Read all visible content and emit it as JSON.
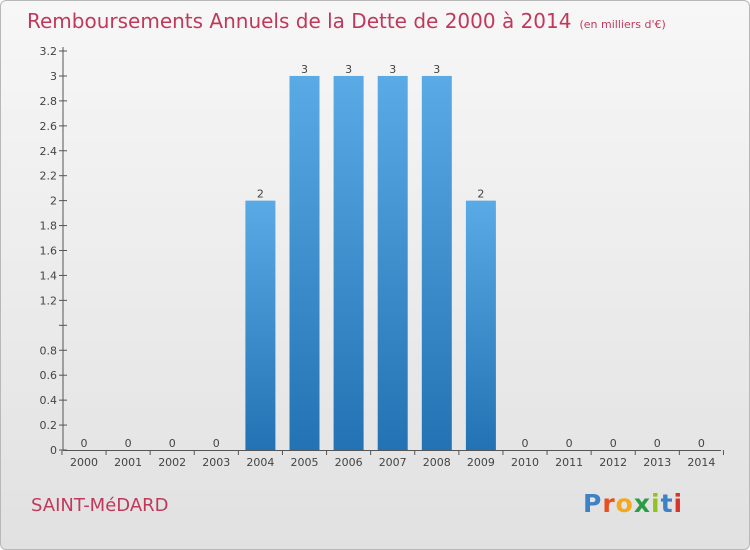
{
  "header": {
    "title": "Remboursements Annuels de la Dette de 2000 à 2014",
    "subtitle": "(en milliers d'€)"
  },
  "footer": {
    "city": "SAINT-MéDARD",
    "logo": "Proxiti"
  },
  "colors": {
    "title": "#c0395b",
    "bar_top": "#5aaae6",
    "bar_bottom": "#2373b4",
    "logo_letters": [
      "#3d82c4",
      "#e8511f",
      "#f3a81d",
      "#2c9b45",
      "#8fc31f",
      "#3d82c4",
      "#d8342b"
    ]
  },
  "chart_data": {
    "type": "bar",
    "categories": [
      "2000",
      "2001",
      "2002",
      "2003",
      "2004",
      "2005",
      "2006",
      "2007",
      "2008",
      "2009",
      "2010",
      "2011",
      "2012",
      "2013",
      "2014"
    ],
    "values": [
      0,
      0,
      0,
      0,
      2,
      3,
      3,
      3,
      3,
      2,
      0,
      0,
      0,
      0,
      0
    ],
    "data_labels": [
      "0",
      "0",
      "0",
      "0",
      "2",
      "3",
      "3",
      "3",
      "3",
      "2",
      "0",
      "0",
      "0",
      "0",
      "0"
    ],
    "y_ticks": [
      0,
      0.2,
      0.4,
      0.6,
      0.8,
      1.2,
      1.4,
      1.6,
      1.8,
      2,
      2.2,
      2.4,
      2.6,
      2.8,
      3,
      3.2
    ],
    "y_tick_labels": [
      "0",
      "0.2",
      "0.4",
      "0.6",
      "0.8",
      "1.2",
      "1.4",
      "1.6",
      "1.8",
      "2",
      "2.2",
      "2.4",
      "2.6",
      "2.8",
      "3",
      "3.2"
    ],
    "ylim": [
      0,
      3.2
    ],
    "grid": false
  }
}
